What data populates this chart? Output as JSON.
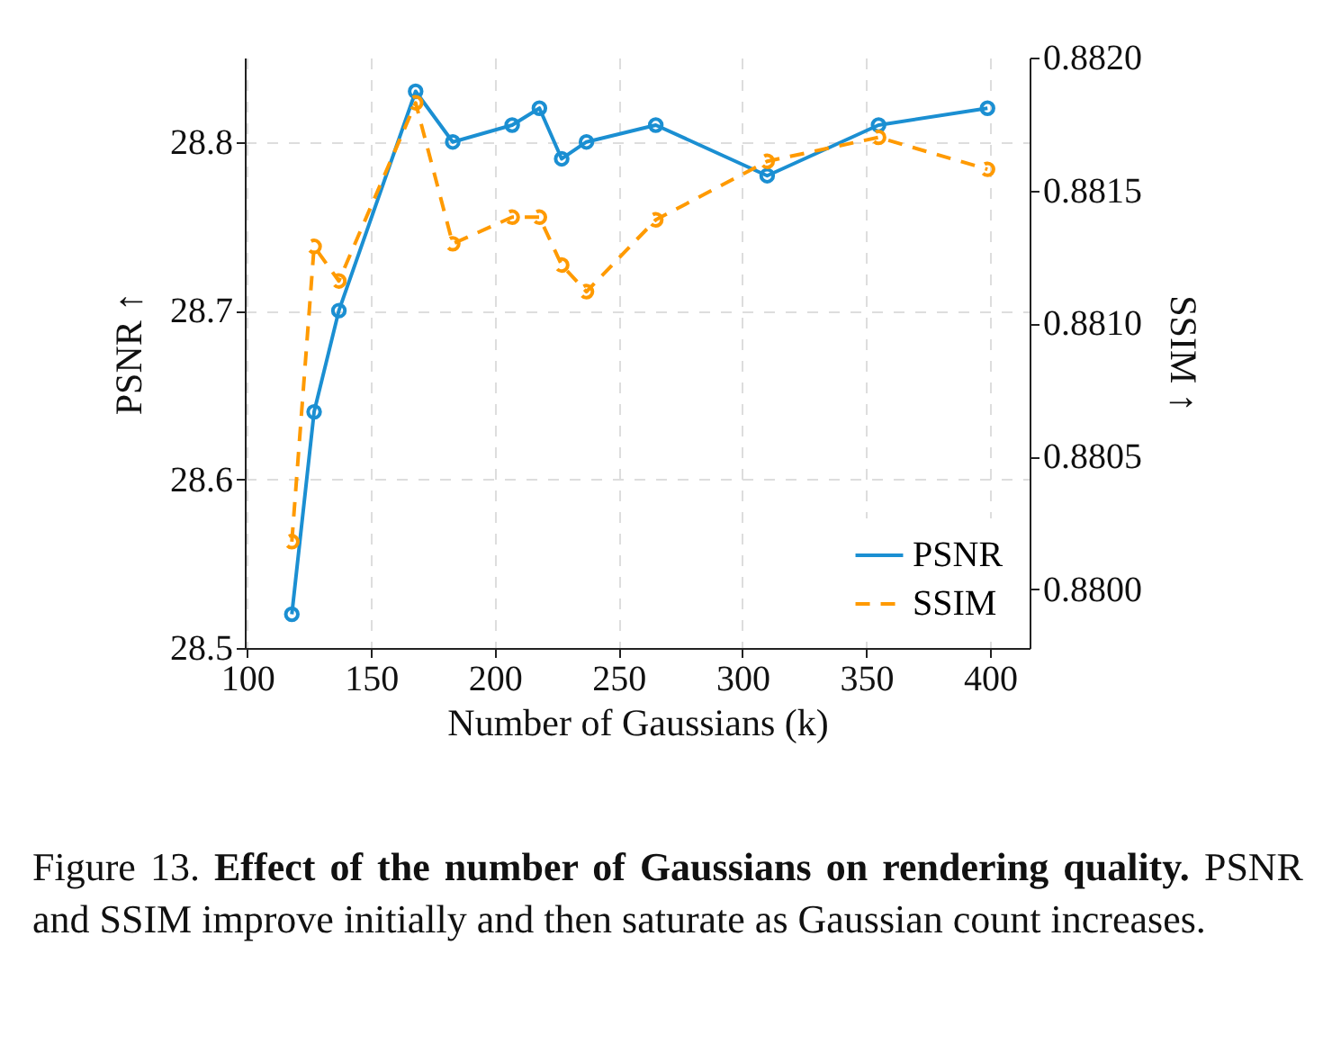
{
  "chart_data": {
    "type": "line",
    "xlabel": "Number of Gaussians (k)",
    "ylabel": "PSNR ↑",
    "y2label": "SSIM ↑",
    "x": [
      118,
      127,
      137,
      168,
      183,
      207,
      218,
      227,
      237,
      265,
      310,
      355,
      399
    ],
    "series": [
      {
        "name": "PSNR",
        "color": "#1b8fd2",
        "marker": "circle",
        "line_style": "solid",
        "values": [
          28.52,
          28.64,
          28.7,
          28.83,
          28.8,
          28.81,
          28.82,
          28.79,
          28.8,
          28.81,
          28.78,
          28.81,
          28.82
        ]
      },
      {
        "name": "SSIM",
        "color": "#ff9a00",
        "marker": "circle",
        "line_style": "dashed",
        "axis": "y2",
        "values": [
          0.88018,
          0.88129,
          0.88116,
          0.88183,
          0.8813,
          0.8814,
          0.8814,
          0.88122,
          0.88112,
          0.88139,
          0.88161,
          0.8817,
          0.88158
        ]
      }
    ],
    "xlim": [
      99,
      416
    ],
    "xticks": [
      100,
      150,
      200,
      250,
      300,
      350,
      400
    ],
    "ylim": [
      28.5,
      28.85
    ],
    "yticks": [
      28.5,
      28.6,
      28.7,
      28.8
    ],
    "y2lim": [
      0.87978,
      0.882
    ],
    "y2ticks": [
      {
        "value": 0.88,
        "label": "0.8800"
      },
      0.8805,
      {
        "value": 0.881,
        "label": "0.8810"
      },
      0.8815,
      {
        "value": 0.882,
        "label": "0.8820"
      }
    ],
    "grid": true,
    "legend": "bottom right",
    "annotations": [
      "Figure 13.",
      "Effect of the number of Gaussians on rendering quality.",
      "PSNR and SSIM improve initially and then saturate as Gaussian count increases."
    ]
  }
}
